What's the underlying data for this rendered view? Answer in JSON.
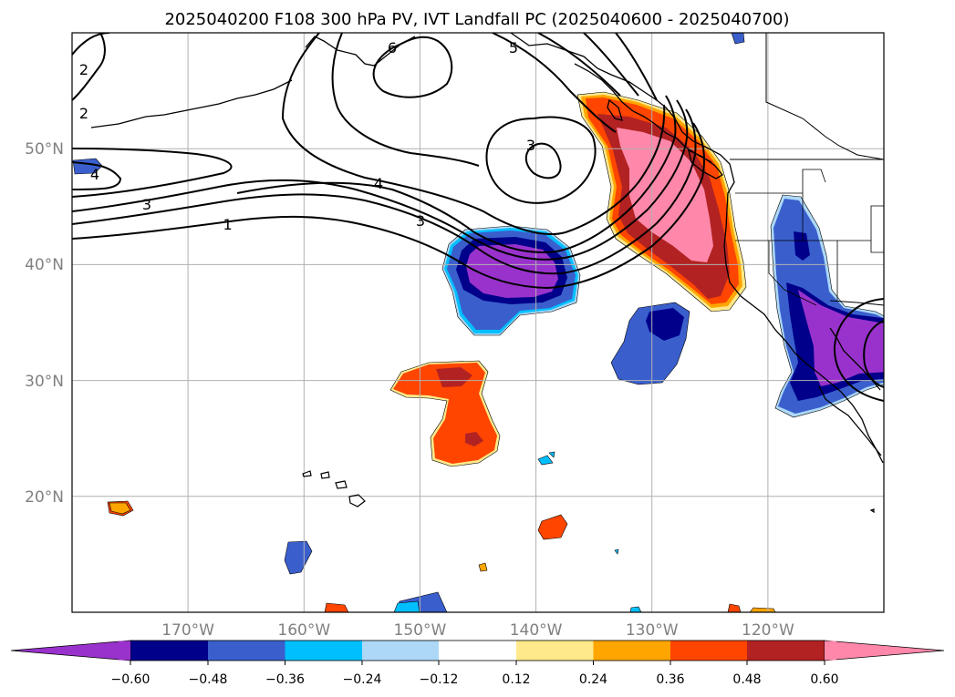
{
  "title": "2025040200 F108 300 hPa PV, IVT Landfall PC (2025040600 - 2025040700)",
  "lat_labels": [
    {
      "text": "50°N",
      "lat": 50
    },
    {
      "text": "40°N",
      "lat": 40
    },
    {
      "text": "30°N",
      "lat": 30
    },
    {
      "text": "20°N",
      "lat": 20
    }
  ],
  "lon_labels": [
    {
      "text": "170°W",
      "lon": -170
    },
    {
      "text": "160°W",
      "lon": -160
    },
    {
      "text": "150°W",
      "lon": -150
    },
    {
      "text": "140°W",
      "lon": -140
    },
    {
      "text": "130°W",
      "lon": -130
    },
    {
      "text": "120°W",
      "lon": -120
    }
  ],
  "colorbar": {
    "colors": [
      "#9932cc",
      "#00008b",
      "#3a5fcd",
      "#00bfff",
      "#add8f8",
      "#ffffff",
      "#ffe98a",
      "#ffa500",
      "#ff4500",
      "#b22222",
      "#ff88aa"
    ],
    "tick_labels": [
      "−0.60",
      "−0.48",
      "−0.36",
      "−0.24",
      "−0.12",
      "0.12",
      "0.24",
      "0.36",
      "0.48",
      "0.60"
    ]
  },
  "contour_labels": [
    {
      "text": "1",
      "lon": -162.3,
      "lat": 43.4
    },
    {
      "text": "3",
      "lon": -153.4,
      "lat": 43.8
    },
    {
      "text": "3",
      "lon": -175.6,
      "lat": 45.0
    },
    {
      "text": "4",
      "lon": -176.1,
      "lat": 47.6
    },
    {
      "text": "4",
      "lon": -155.5,
      "lat": 47.0
    },
    {
      "text": "3",
      "lon": -139.6,
      "lat": 50.3
    },
    {
      "text": "2",
      "lon": -179.0,
      "lat": 56.0
    },
    {
      "text": "2",
      "lon": -179.0,
      "lat": 58.9
    },
    {
      "text": "5",
      "lon": -141.8,
      "lat": 59.2
    },
    {
      "text": "6",
      "lon": -150.3,
      "lat": 59.2
    }
  ],
  "chart_data": {
    "type": "map",
    "extent": {
      "lon": [
        -180,
        -110
      ],
      "lat": [
        10,
        60
      ]
    },
    "gridlines": true,
    "fields": "300 hPa PV contours (black lines) and IVT landfall PC (shaded)",
    "colorbar_levels": [
      -0.6,
      -0.48,
      -0.36,
      -0.24,
      -0.12,
      0.12,
      0.24,
      0.36,
      0.48,
      0.6
    ],
    "colorbar_orientation": "horizontal",
    "colorbar_extend": "both"
  }
}
